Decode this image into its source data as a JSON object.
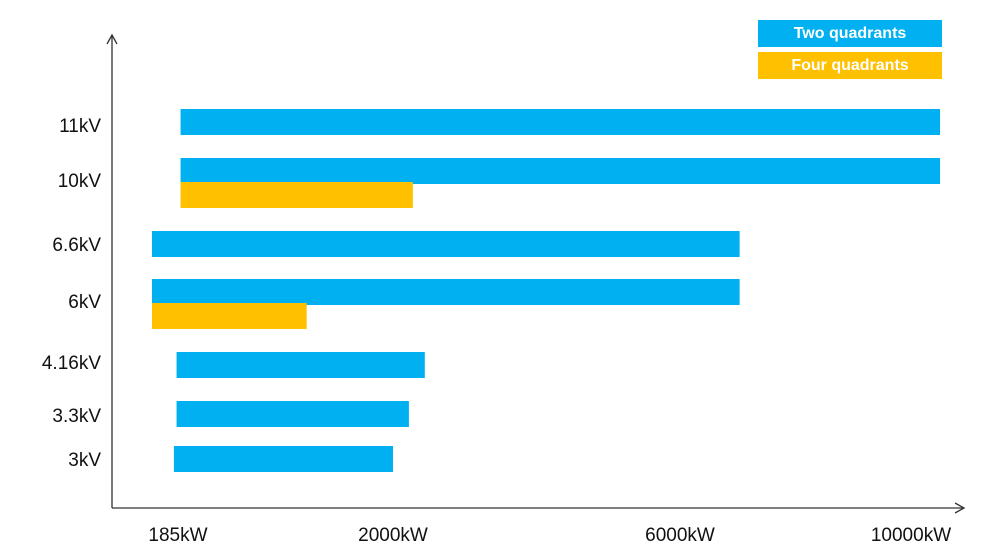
{
  "chart_data": {
    "type": "bar",
    "orientation": "horizontal",
    "title": "",
    "xlabel": "",
    "ylabel": "",
    "grid": false,
    "legend_position": "top-right",
    "x_ticks": [
      {
        "label": "185kW",
        "value": 185
      },
      {
        "label": "2000kW",
        "value": 2000
      },
      {
        "label": "6000kW",
        "value": 6000
      },
      {
        "label": "10000kW",
        "value": 10000
      }
    ],
    "categories": [
      "11kV",
      "10kV",
      "6.6kV",
      "6kV",
      "4.16kV",
      "3.3kV",
      "3kV"
    ],
    "series": [
      {
        "name": "Two quadrants",
        "color": "#00B0F0",
        "ranges": [
          {
            "category": "11kV",
            "min": 400,
            "max": 10000
          },
          {
            "category": "10kV",
            "min": 400,
            "max": 10000
          },
          {
            "category": "6.6kV",
            "min": 185,
            "max": 6500
          },
          {
            "category": "6kV",
            "min": 185,
            "max": 6500
          },
          {
            "category": "4.16kV",
            "min": 370,
            "max": 2400
          },
          {
            "category": "3.3kV",
            "min": 370,
            "max": 2200
          },
          {
            "category": "3kV",
            "min": 350,
            "max": 2000
          }
        ]
      },
      {
        "name": "Four quadrants",
        "color": "#FFC000",
        "ranges": [
          {
            "category": "10kV",
            "min": 400,
            "max": 2250
          },
          {
            "category": "6kV",
            "min": 185,
            "max": 1350
          }
        ]
      }
    ]
  }
}
